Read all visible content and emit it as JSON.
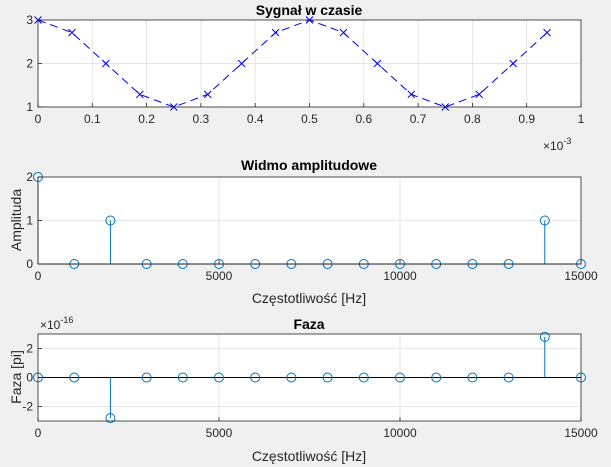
{
  "chart_data": [
    {
      "type": "line",
      "title": "Sygnał w czasie",
      "xlabel": "",
      "ylabel": "",
      "x_exponent": "-3",
      "xlim": [
        0,
        1
      ],
      "ylim": [
        1,
        3
      ],
      "grid": true,
      "line_color": "#0000ff",
      "line_style": "dashed",
      "marker": "x",
      "xticks": [
        "0",
        "0.1",
        "0.2",
        "0.3",
        "0.4",
        "0.5",
        "0.6",
        "0.7",
        "0.8",
        "0.9",
        "1"
      ],
      "yticks": [
        "1",
        "2",
        "3"
      ],
      "x": [
        0,
        0.0625,
        0.125,
        0.1875,
        0.25,
        0.3125,
        0.375,
        0.4375,
        0.5,
        0.5625,
        0.625,
        0.6875,
        0.75,
        0.8125,
        0.875,
        0.9375
      ],
      "y": [
        3,
        2.71,
        2.0,
        1.29,
        1.0,
        1.29,
        2.0,
        2.71,
        3,
        2.71,
        2.0,
        1.29,
        1.0,
        1.29,
        2.0,
        2.71
      ]
    },
    {
      "type": "stem",
      "title": "Widmo amplitudowe",
      "xlabel": "Częstotliwość [Hz]",
      "ylabel": "Amplituda",
      "xlim": [
        0,
        15000
      ],
      "ylim": [
        0,
        2
      ],
      "grid": true,
      "stem_color": "#0072bd",
      "xticks": [
        "0",
        "5000",
        "10000",
        "15000"
      ],
      "yticks": [
        "0",
        "1",
        "2"
      ],
      "x": [
        0,
        1000,
        2000,
        3000,
        4000,
        5000,
        6000,
        7000,
        8000,
        9000,
        10000,
        11000,
        12000,
        13000,
        14000,
        15000
      ],
      "y": [
        2,
        0,
        1,
        0,
        0,
        0,
        0,
        0,
        0,
        0,
        0,
        0,
        0,
        0,
        1,
        0
      ]
    },
    {
      "type": "stem",
      "title": "Faza",
      "xlabel": "Częstotliwość [Hz]",
      "ylabel": "Faza [pi]",
      "y_exponent": "-16",
      "xlim": [
        0,
        15000
      ],
      "ylim": [
        -3,
        3
      ],
      "grid": true,
      "stem_color": "#0072bd",
      "xticks": [
        "0",
        "5000",
        "10000",
        "15000"
      ],
      "yticks": [
        "-2",
        "0",
        "2"
      ],
      "x": [
        0,
        1000,
        2000,
        3000,
        4000,
        5000,
        6000,
        7000,
        8000,
        9000,
        10000,
        11000,
        12000,
        13000,
        14000,
        15000
      ],
      "y": [
        0,
        0,
        -2.8,
        0,
        0,
        0,
        0,
        0,
        0,
        0,
        0,
        0,
        0,
        0,
        2.8,
        0
      ]
    }
  ]
}
